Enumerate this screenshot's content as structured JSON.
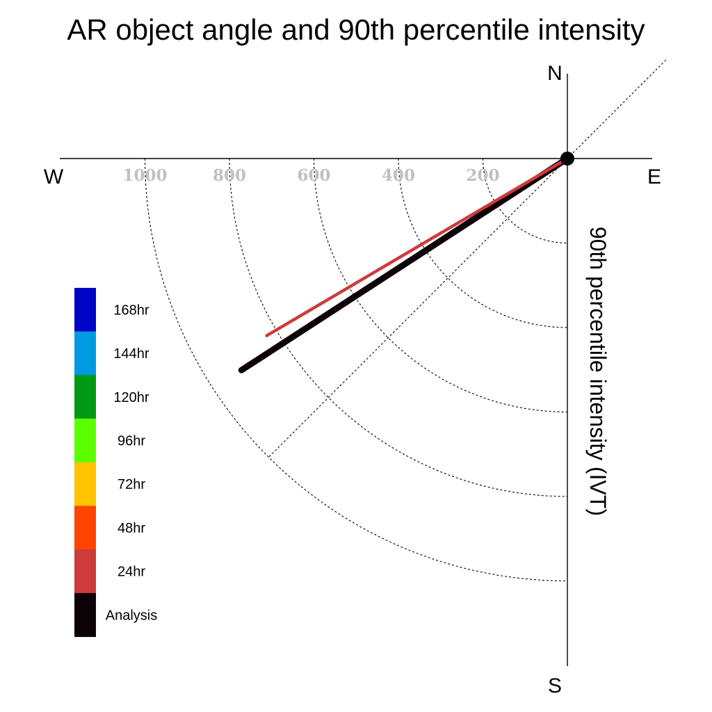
{
  "chart_data": {
    "type": "polar-quadrant",
    "title": "AR object angle and 90th percentile intensity",
    "ylabel": "90th percentile intensity (IVT)",
    "compass": {
      "north": "N",
      "south": "S",
      "east": "E",
      "west": "W"
    },
    "radial_ticks": [
      200,
      400,
      600,
      800,
      1000
    ],
    "radial_tick_labels": [
      "200",
      "400",
      "600",
      "800",
      "1000"
    ],
    "rlim": [
      0,
      1000
    ],
    "quadrant": "south-west",
    "diagonal_reference": "northeast-southwest dashed line",
    "grid": true,
    "series": [
      {
        "name": "Analysis",
        "color": "#0d0208",
        "angle_deg_from_north": 237,
        "intensity": 920
      },
      {
        "name": "24hr",
        "color": "#cd3b3b",
        "angle_deg_from_north": 239.5,
        "intensity": 826
      }
    ],
    "legend": {
      "position": "left",
      "entries": [
        {
          "label": "168hr",
          "color": "#0004c4"
        },
        {
          "label": "144hr",
          "color": "#009ae0"
        },
        {
          "label": "120hr",
          "color": "#009a16"
        },
        {
          "label": "96hr",
          "color": "#5cff00"
        },
        {
          "label": "72hr",
          "color": "#ffc300"
        },
        {
          "label": "48hr",
          "color": "#ff4400"
        },
        {
          "label": "24hr",
          "color": "#cd3b3b"
        },
        {
          "label": "Analysis",
          "color": "#0d0208"
        }
      ]
    }
  }
}
